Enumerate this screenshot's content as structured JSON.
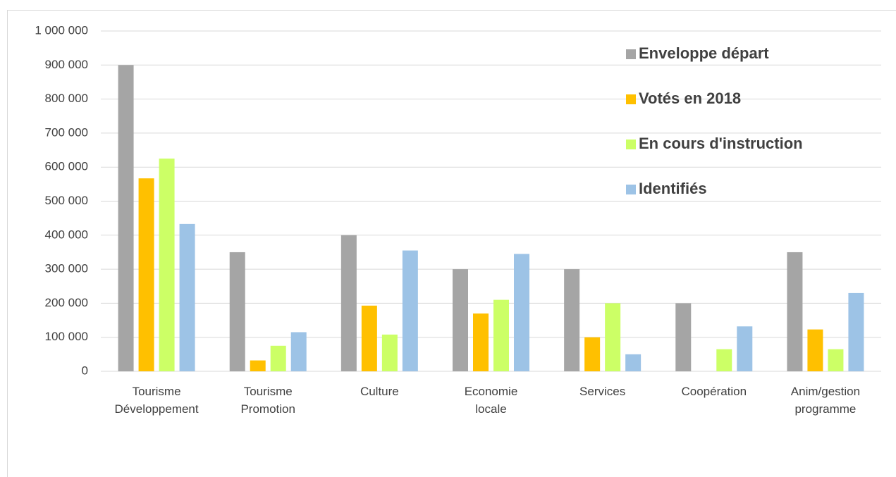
{
  "chart_data": {
    "type": "bar",
    "categories": [
      "Tourisme\nDéveloppement",
      "Tourisme\nPromotion",
      "Culture",
      "Economie\nlocale",
      "Services",
      "Coopération",
      "Anim/gestion\nprogramme"
    ],
    "series": [
      {
        "name": "Enveloppe départ",
        "color": "#a5a5a5",
        "values": [
          900000,
          350000,
          400000,
          300000,
          300000,
          200000,
          350000
        ]
      },
      {
        "name": "Votés en 2018",
        "color": "#ffc000",
        "values": [
          567000,
          32000,
          193000,
          170000,
          100000,
          0,
          123000
        ]
      },
      {
        "name": "En cours d'instruction",
        "color": "#ccff66",
        "values": [
          625000,
          75000,
          108000,
          210000,
          200000,
          65000,
          65000
        ]
      },
      {
        "name": "Identifiés",
        "color": "#9dc3e6",
        "values": [
          433000,
          115000,
          355000,
          345000,
          50000,
          132000,
          230000
        ]
      }
    ],
    "ylim": [
      0,
      1000000
    ],
    "yticks": [
      0,
      {
        "value": 100000,
        "label": "100 000"
      },
      {
        "value": 200000,
        "label": "200 000"
      },
      {
        "value": 300000,
        "label": "300 000"
      },
      {
        "value": 400000,
        "label": "400 000"
      },
      {
        "value": 500000,
        "label": "500 000"
      },
      {
        "value": 600000,
        "label": "600 000"
      },
      {
        "value": 700000,
        "label": "700 000"
      },
      {
        "value": 800000,
        "label": "800 000"
      },
      {
        "value": 900000,
        "label": "900 000"
      },
      {
        "value": 1000000,
        "label": "1 000 000"
      }
    ],
    "grid": true,
    "legend": "top-right"
  }
}
